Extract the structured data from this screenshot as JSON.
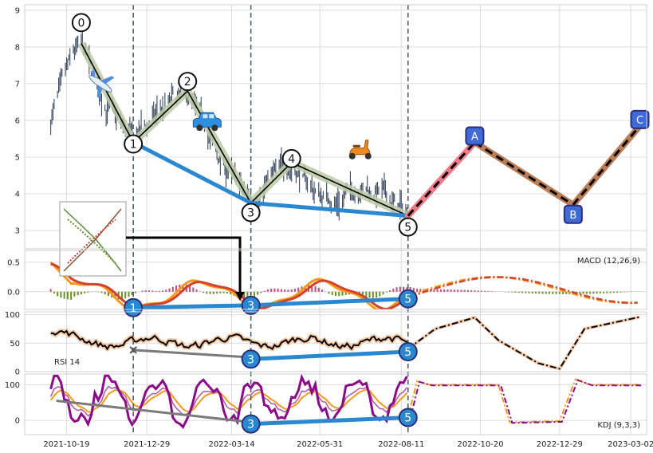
{
  "chart_data": {
    "type": "multi-panel technical analysis chart",
    "x_axis": {
      "type": "date",
      "tick_labels": [
        "2021-10-19",
        "2021-12-29",
        "2022-03-14",
        "2022-05-31",
        "2022-08-11",
        "2022-10-20",
        "2022-12-29",
        "2023-03-02"
      ],
      "range": [
        "2021-09-12",
        "2023-03-16"
      ]
    },
    "colors": {
      "price_bar": "#3c4a63",
      "wave_line": "#000000",
      "wave_band": "#bccaa6",
      "support_line": "#2a88d0",
      "dashed_vline": "#4e5f70",
      "proj_pink": "#f07a88",
      "proj_brown": "#b97d58",
      "badge_fill": "#2a88d0",
      "badge_border": "#2b2f7a",
      "abc_fill": "#3f6ad8",
      "macd_orange": "#f39a1c",
      "macd_red": "#d7402c",
      "rsi_black": "#000000",
      "rsi_band": "#f6c9a6",
      "kdj_purple": "#8a0a8a",
      "kdj_orange": "#f39a1c",
      "grid": "#dcdcdc"
    },
    "price_panel": {
      "y_ticks": [
        3,
        4,
        5,
        6,
        7,
        8,
        9
      ],
      "ylim": [
        2.5,
        9.15
      ],
      "wave_points": [
        {
          "label": "0",
          "date": "2021-11-01",
          "price": 8.1
        },
        {
          "label": "1",
          "date": "2021-12-17",
          "price": 5.4
        },
        {
          "label": "2",
          "date": "2022-02-03",
          "price": 6.8
        },
        {
          "label": "3",
          "date": "2022-03-31",
          "price": 3.75
        },
        {
          "label": "4",
          "date": "2022-05-06",
          "price": 4.85
        },
        {
          "label": "5",
          "date": "2022-08-17",
          "price": 3.4
        }
      ],
      "support_line": [
        {
          "date": "2021-12-17",
          "price": 5.4
        },
        {
          "date": "2022-03-31",
          "price": 3.75
        },
        {
          "date": "2022-08-17",
          "price": 3.4
        }
      ],
      "projection": [
        {
          "label": "5",
          "date": "2022-08-17",
          "price": 3.4
        },
        {
          "label": "A",
          "date": "2022-10-15",
          "price": 5.4
        },
        {
          "label": "B",
          "date": "2023-01-10",
          "price": 3.7
        },
        {
          "label": "C",
          "date": "2023-03-10",
          "price": 5.85
        }
      ],
      "price_series_anchors": [
        [
          "2021-10-05",
          6.0
        ],
        [
          "2021-10-15",
          6.9
        ],
        [
          "2021-10-25",
          7.8
        ],
        [
          "2021-11-01",
          8.0
        ],
        [
          "2021-11-12",
          7.1
        ],
        [
          "2021-11-25",
          6.3
        ],
        [
          "2021-12-08",
          5.8
        ],
        [
          "2021-12-17",
          5.5
        ],
        [
          "2022-01-03",
          6.0
        ],
        [
          "2022-01-20",
          6.5
        ],
        [
          "2022-02-03",
          6.6
        ],
        [
          "2022-02-18",
          5.9
        ],
        [
          "2022-03-01",
          5.0
        ],
        [
          "2022-03-15",
          4.4
        ],
        [
          "2022-03-31",
          3.8
        ],
        [
          "2022-04-15",
          4.4
        ],
        [
          "2022-05-06",
          4.85
        ],
        [
          "2022-05-25",
          4.1
        ],
        [
          "2022-06-15",
          3.8
        ],
        [
          "2022-07-05",
          4.2
        ],
        [
          "2022-07-25",
          4.0
        ],
        [
          "2022-08-17",
          3.45
        ]
      ],
      "icons": [
        {
          "name": "airplane",
          "date": "2021-11-18",
          "price": 7.0
        },
        {
          "name": "car",
          "date": "2022-02-20",
          "price": 5.95
        },
        {
          "name": "scooter",
          "date": "2022-07-05",
          "price": 5.2
        }
      ]
    },
    "macd_panel": {
      "label": "MACD (12,26,9)",
      "y_ticks": [
        0.0,
        0.5
      ],
      "ylim": [
        -0.3,
        0.7
      ]
    },
    "rsi_panel": {
      "label": "RSI 14",
      "y_ticks": [
        0,
        50,
        100
      ],
      "ylim": [
        0,
        105
      ]
    },
    "kdj_panel": {
      "label": "KDJ (9,3,3)",
      "y_ticks": [
        0,
        100
      ],
      "ylim": [
        -40,
        130
      ]
    }
  }
}
